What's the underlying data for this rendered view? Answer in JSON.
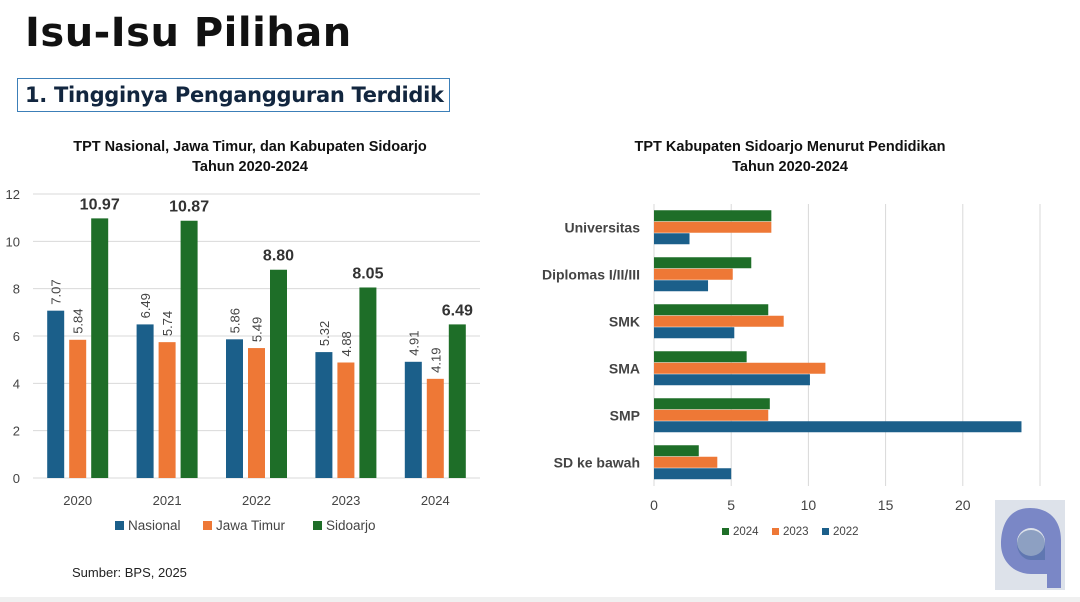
{
  "slide": {
    "title": "Isu-Isu Pilihan",
    "subtitle": "1.  Tingginya Pengangguran Terdidik",
    "source": "Sumber: BPS, 2025",
    "logo_icon": "q-logo-icon"
  },
  "chart_data": [
    {
      "type": "bar",
      "title": "TPT Nasional, Jawa Timur, dan Kabupaten Sidoarjo",
      "subtitle": "Tahun 2020-2024",
      "categories": [
        "2020",
        "2021",
        "2022",
        "2023",
        "2024"
      ],
      "series": [
        {
          "name": "Nasional",
          "color": "#1b5f8a",
          "values": [
            7.07,
            6.49,
            5.86,
            5.32,
            4.91
          ]
        },
        {
          "name": "Jawa Timur",
          "color": "#ee7836",
          "values": [
            5.84,
            5.74,
            5.49,
            4.88,
            4.19
          ]
        },
        {
          "name": "Sidoarjo",
          "color": "#1e6e28",
          "values": [
            10.97,
            10.87,
            8.8,
            8.05,
            6.49
          ]
        }
      ],
      "data_labels": [
        [
          "7.07",
          "6.49",
          "5.86",
          "5.32",
          "4.91"
        ],
        [
          "5.84",
          "5.74",
          "5.49",
          "4.88",
          "4.19"
        ],
        [
          "10.97",
          "10.87",
          "8.80",
          "8.05",
          "6.49"
        ]
      ],
      "ylim": [
        0,
        12
      ],
      "yticks": [
        "0",
        "2",
        "4",
        "6",
        "8",
        "10",
        "12"
      ],
      "grid": true,
      "legend_position": "bottom"
    },
    {
      "type": "bar",
      "orientation": "horizontal",
      "title": "TPT Kabupaten Sidoarjo Menurut Pendidikan",
      "subtitle": "Tahun 2020-2024",
      "categories": [
        "Universitas",
        "Diplomas I/II/III",
        "SMK",
        "SMA",
        "SMP",
        "SD ke bawah"
      ],
      "series": [
        {
          "name": "2024",
          "color": "#1e6e28",
          "values": [
            7.6,
            6.3,
            7.4,
            6.0,
            7.5,
            2.9
          ]
        },
        {
          "name": "2023",
          "color": "#ee7836",
          "values": [
            7.6,
            5.1,
            8.4,
            11.1,
            7.4,
            4.1
          ]
        },
        {
          "name": "2022",
          "color": "#1b5f8a",
          "values": [
            2.3,
            3.5,
            5.2,
            10.1,
            23.8,
            5.0
          ]
        }
      ],
      "xlim": [
        0,
        25
      ],
      "xticks": [
        "0",
        "5",
        "10",
        "15",
        "20",
        "25"
      ],
      "grid": true,
      "legend_position": "bottom"
    }
  ]
}
